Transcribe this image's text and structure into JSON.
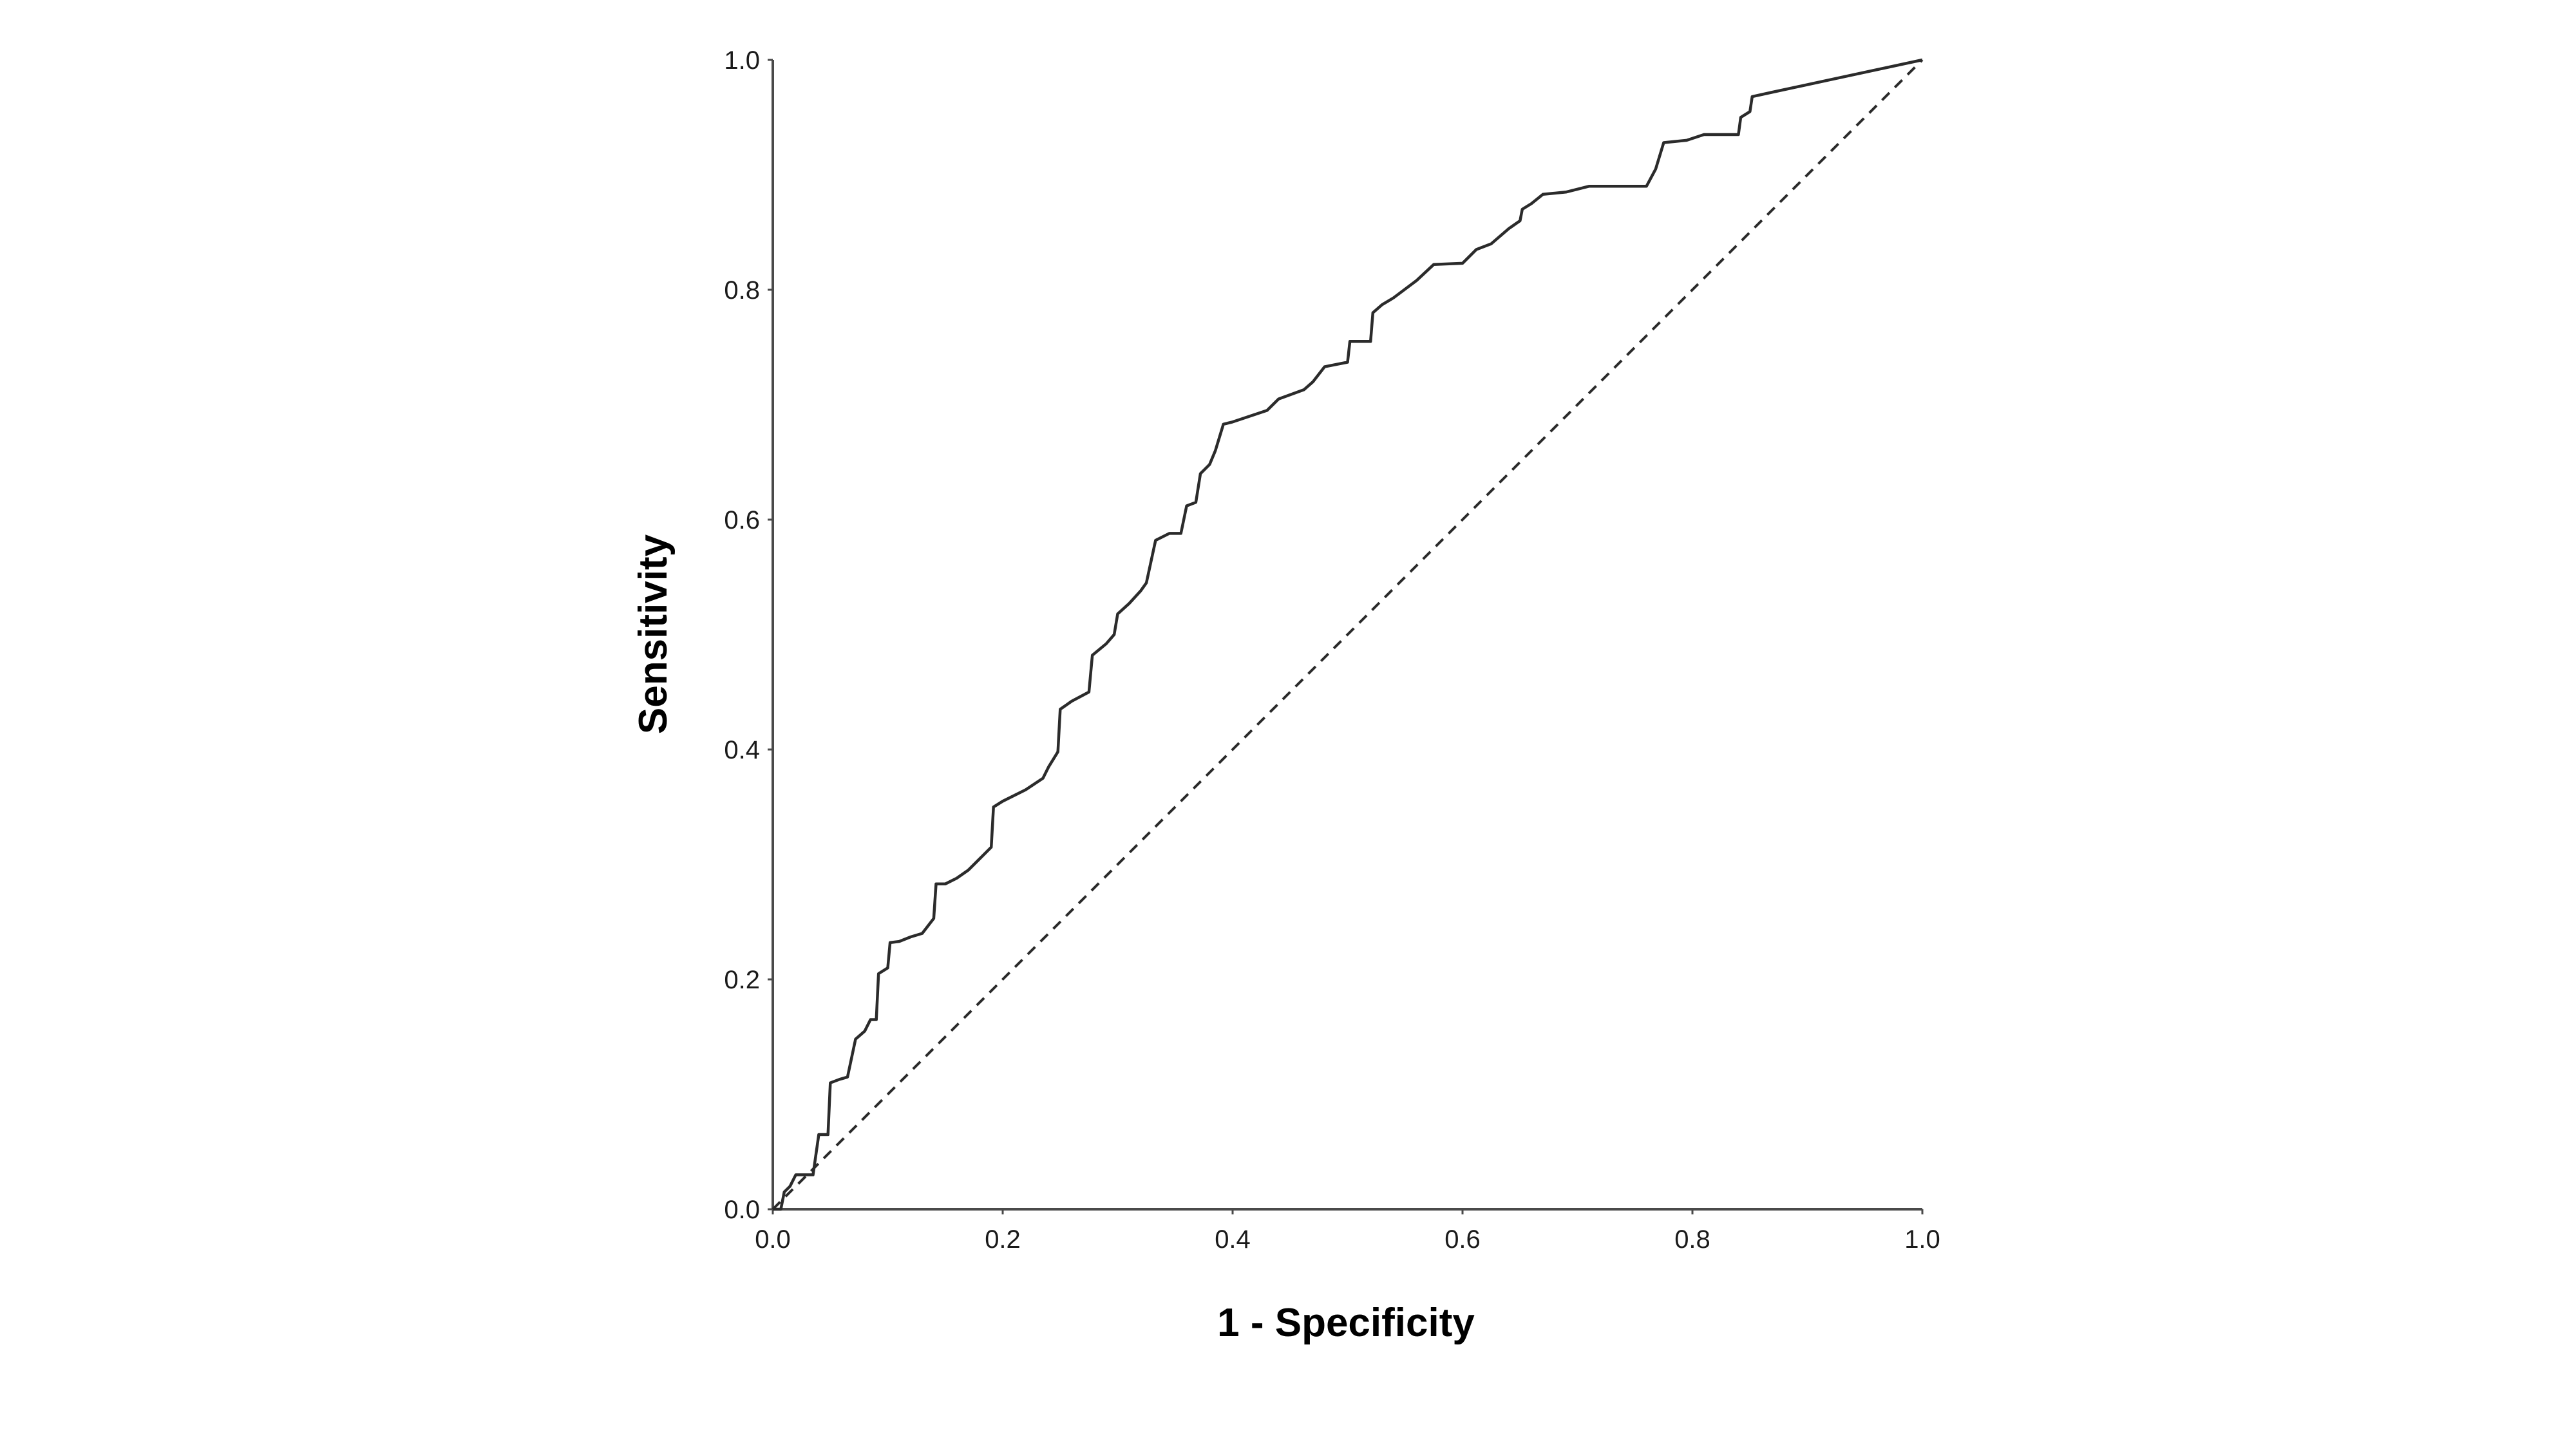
{
  "chart_data": {
    "type": "line",
    "title": "",
    "xlabel": "1 - Specificity",
    "ylabel": "Sensitivity",
    "xlim": [
      0,
      1
    ],
    "ylim": [
      0,
      1
    ],
    "x_ticks": [
      "0.0",
      "0.2",
      "0.4",
      "0.6",
      "0.8",
      "1.0"
    ],
    "y_ticks": [
      "0.0",
      "0.2",
      "0.4",
      "0.6",
      "0.8",
      "1.0"
    ],
    "grid": false,
    "legend": "none",
    "line_color": "#2b2b2b",
    "series": [
      {
        "style": "solid",
        "points": [
          [
            0.0,
            0.0
          ],
          [
            0.007,
            0.0
          ],
          [
            0.01,
            0.015
          ],
          [
            0.015,
            0.02
          ],
          [
            0.02,
            0.03
          ],
          [
            0.035,
            0.03
          ],
          [
            0.04,
            0.065
          ],
          [
            0.048,
            0.065
          ],
          [
            0.05,
            0.11
          ],
          [
            0.058,
            0.113
          ],
          [
            0.065,
            0.115
          ],
          [
            0.072,
            0.148
          ],
          [
            0.08,
            0.155
          ],
          [
            0.085,
            0.165
          ],
          [
            0.09,
            0.165
          ],
          [
            0.092,
            0.205
          ],
          [
            0.1,
            0.21
          ],
          [
            0.102,
            0.232
          ],
          [
            0.11,
            0.233
          ],
          [
            0.12,
            0.237
          ],
          [
            0.13,
            0.24
          ],
          [
            0.14,
            0.253
          ],
          [
            0.142,
            0.283
          ],
          [
            0.15,
            0.283
          ],
          [
            0.16,
            0.288
          ],
          [
            0.17,
            0.295
          ],
          [
            0.18,
            0.305
          ],
          [
            0.19,
            0.315
          ],
          [
            0.192,
            0.35
          ],
          [
            0.2,
            0.355
          ],
          [
            0.22,
            0.365
          ],
          [
            0.235,
            0.375
          ],
          [
            0.24,
            0.385
          ],
          [
            0.248,
            0.398
          ],
          [
            0.25,
            0.435
          ],
          [
            0.26,
            0.442
          ],
          [
            0.275,
            0.45
          ],
          [
            0.278,
            0.482
          ],
          [
            0.29,
            0.492
          ],
          [
            0.297,
            0.5
          ],
          [
            0.3,
            0.518
          ],
          [
            0.31,
            0.527
          ],
          [
            0.32,
            0.538
          ],
          [
            0.325,
            0.545
          ],
          [
            0.333,
            0.582
          ],
          [
            0.345,
            0.588
          ],
          [
            0.355,
            0.588
          ],
          [
            0.36,
            0.612
          ],
          [
            0.368,
            0.615
          ],
          [
            0.372,
            0.64
          ],
          [
            0.38,
            0.648
          ],
          [
            0.385,
            0.66
          ],
          [
            0.392,
            0.683
          ],
          [
            0.4,
            0.685
          ],
          [
            0.43,
            0.695
          ],
          [
            0.44,
            0.705
          ],
          [
            0.462,
            0.713
          ],
          [
            0.47,
            0.72
          ],
          [
            0.48,
            0.733
          ],
          [
            0.5,
            0.737
          ],
          [
            0.502,
            0.755
          ],
          [
            0.52,
            0.755
          ],
          [
            0.522,
            0.78
          ],
          [
            0.53,
            0.787
          ],
          [
            0.54,
            0.793
          ],
          [
            0.56,
            0.808
          ],
          [
            0.575,
            0.822
          ],
          [
            0.6,
            0.823
          ],
          [
            0.612,
            0.835
          ],
          [
            0.625,
            0.84
          ],
          [
            0.64,
            0.853
          ],
          [
            0.65,
            0.86
          ],
          [
            0.652,
            0.87
          ],
          [
            0.66,
            0.875
          ],
          [
            0.67,
            0.883
          ],
          [
            0.69,
            0.885
          ],
          [
            0.71,
            0.89
          ],
          [
            0.76,
            0.89
          ],
          [
            0.768,
            0.905
          ],
          [
            0.775,
            0.928
          ],
          [
            0.795,
            0.93
          ],
          [
            0.81,
            0.935
          ],
          [
            0.84,
            0.935
          ],
          [
            0.842,
            0.95
          ],
          [
            0.85,
            0.955
          ],
          [
            0.852,
            0.968
          ],
          [
            0.87,
            0.972
          ],
          [
            1.0,
            1.0
          ]
        ]
      },
      {
        "style": "dashed",
        "points": [
          [
            0,
            0
          ],
          [
            1,
            1
          ]
        ]
      }
    ]
  }
}
